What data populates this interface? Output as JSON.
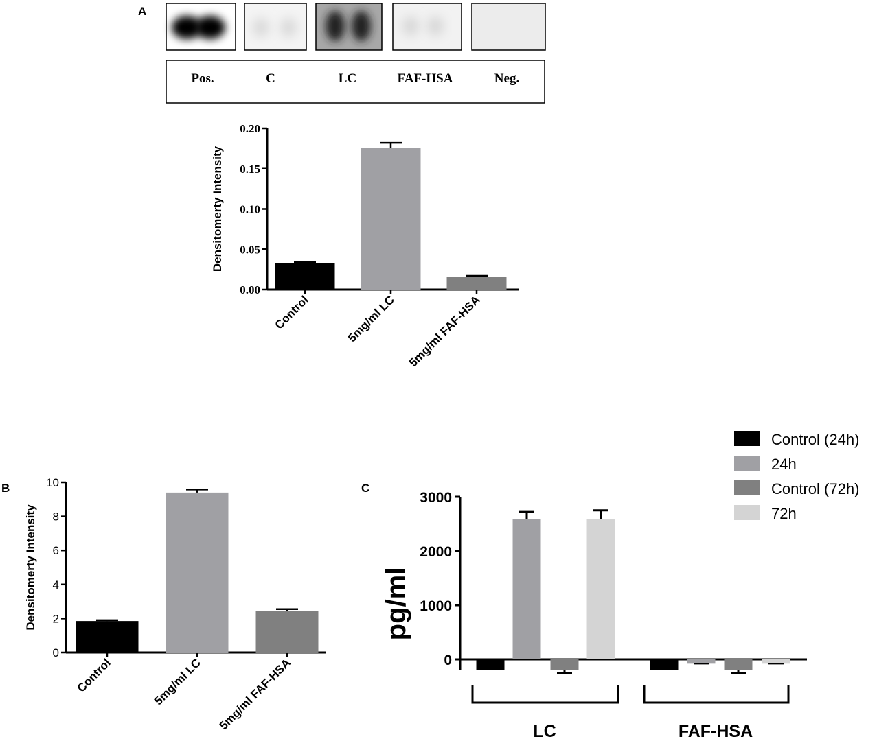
{
  "panel_labels": {
    "a": "A",
    "b": "B",
    "c": "C"
  },
  "blot": {
    "lanes": [
      "Pos.",
      "C",
      "LC",
      "FAF-HSA",
      "Neg."
    ]
  },
  "chart_data": [
    {
      "id": "A",
      "type": "bar",
      "ylabel": "Densitomerty  Intensity",
      "categories": [
        "Control",
        "5mg/ml LC",
        "5mg/ml FAF-HSA"
      ],
      "values": [
        0.033,
        0.176,
        0.016
      ],
      "errors": [
        0.001,
        0.006,
        0.001
      ],
      "colors": [
        "#000000",
        "#a0a0a4",
        "#808080"
      ],
      "ylim": [
        0,
        0.2
      ],
      "yticks": [
        "0.00",
        "0.05",
        "0.10",
        "0.15",
        "0.20"
      ]
    },
    {
      "id": "B",
      "type": "bar",
      "ylabel": "Densitomerty  Intensity",
      "categories": [
        "Control",
        "5mg/ml LC",
        "5mg/ml FAF-HSA"
      ],
      "values": [
        1.85,
        9.4,
        2.45
      ],
      "errors": [
        0.05,
        0.18,
        0.1
      ],
      "colors": [
        "#000000",
        "#a0a0a4",
        "#808080"
      ],
      "ylim": [
        0,
        10
      ],
      "yticks": [
        "0",
        "2",
        "4",
        "6",
        "8",
        "10"
      ]
    },
    {
      "id": "C",
      "type": "bar",
      "ylabel": "pg/ml",
      "groups": [
        "LC",
        "FAF-HSA"
      ],
      "series": [
        {
          "name": "Control (24h)",
          "color": "#000000",
          "values": [
            -200,
            -200
          ],
          "errors": [
            0,
            0
          ]
        },
        {
          "name": "24h",
          "color": "#a0a0a4",
          "values": [
            2590,
            -80
          ],
          "errors": [
            130,
            0
          ]
        },
        {
          "name": "Control (72h)",
          "color": "#808080",
          "values": [
            -190,
            -190
          ],
          "errors": [
            60,
            60
          ]
        },
        {
          "name": "72h",
          "color": "#d4d4d4",
          "values": [
            2590,
            -80
          ],
          "errors": [
            160,
            0
          ]
        }
      ],
      "ylim": [
        -200,
        3000
      ],
      "yticks": [
        "0",
        "1000",
        "2000",
        "3000"
      ],
      "legend": "top-right"
    }
  ]
}
